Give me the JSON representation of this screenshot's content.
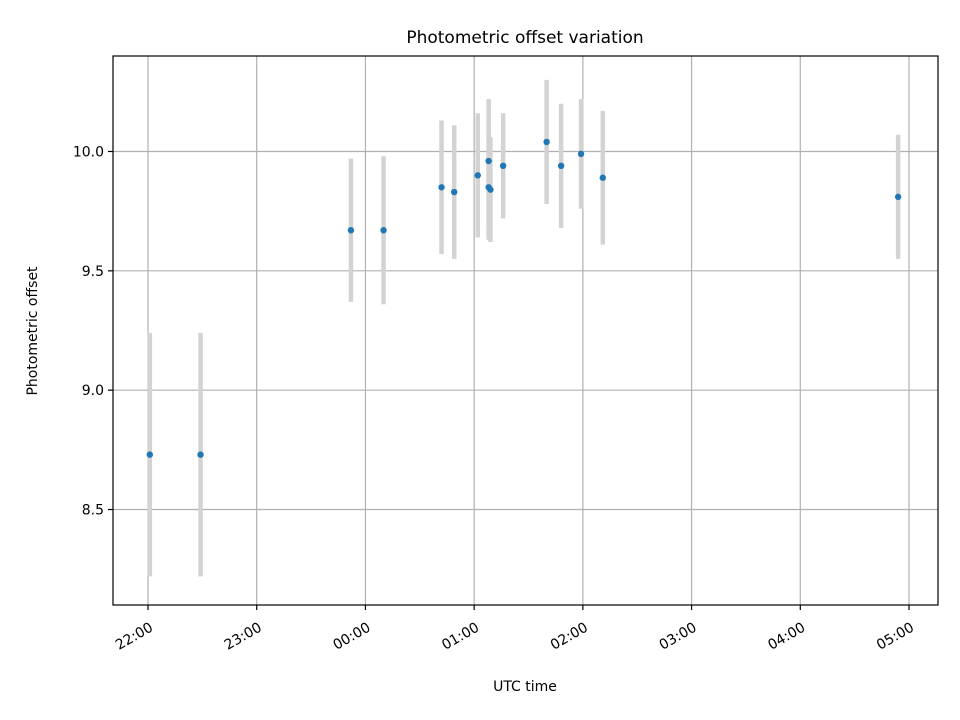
{
  "chart_data": {
    "type": "scatter",
    "title": "Photometric offset variation",
    "xlabel": "UTC time",
    "ylabel": "Photometric offset",
    "grid": true,
    "x_tick_labels": [
      "22:00",
      "23:00",
      "00:00",
      "01:00",
      "02:00",
      "03:00",
      "04:00",
      "05:00"
    ],
    "y_ticks": [
      8.5,
      9.0,
      9.5,
      10.0
    ],
    "y_tick_labels": [
      "8.5",
      "9.0",
      "9.5",
      "10.0"
    ],
    "ylim": [
      8.1,
      10.4
    ],
    "colors": {
      "point": "#1f77b4",
      "errorbar": "#d3d3d3",
      "grid": "#b0b0b0"
    },
    "series": [
      {
        "points": [
          {
            "x": "22:01",
            "y": 8.73,
            "err": 0.51
          },
          {
            "x": "22:29",
            "y": 8.73,
            "err": 0.51
          },
          {
            "x": "23:52",
            "y": 9.67,
            "err": 0.3
          },
          {
            "x": "00:10",
            "y": 9.67,
            "err": 0.31
          },
          {
            "x": "00:42",
            "y": 9.85,
            "err": 0.28
          },
          {
            "x": "00:49",
            "y": 9.83,
            "err": 0.28
          },
          {
            "x": "01:02",
            "y": 9.9,
            "err": 0.26
          },
          {
            "x": "01:08",
            "y": 9.96,
            "err": 0.26
          },
          {
            "x": "01:08",
            "y": 9.85,
            "err": 0.22
          },
          {
            "x": "01:09",
            "y": 9.84,
            "err": 0.22
          },
          {
            "x": "01:16",
            "y": 9.94,
            "err": 0.22
          },
          {
            "x": "01:40",
            "y": 10.04,
            "err": 0.26
          },
          {
            "x": "01:48",
            "y": 9.94,
            "err": 0.26
          },
          {
            "x": "01:59",
            "y": 9.99,
            "err": 0.23
          },
          {
            "x": "02:11",
            "y": 9.89,
            "err": 0.28
          },
          {
            "x": "04:54",
            "y": 9.81,
            "err": 0.26
          }
        ]
      }
    ]
  }
}
